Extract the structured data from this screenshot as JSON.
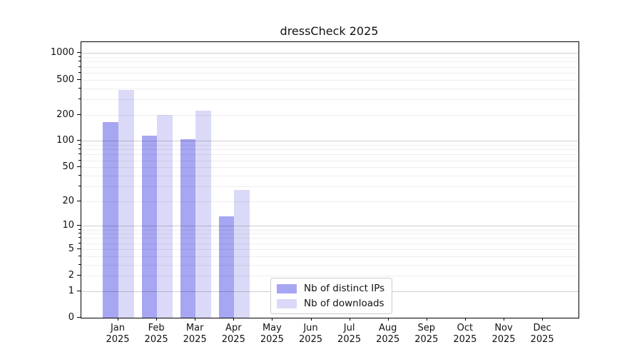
{
  "figure": {
    "background": "#ffffff",
    "text_color": "#111111"
  },
  "chart_data": {
    "type": "bar",
    "title": "dressCheck 2025",
    "categories": [
      "Jan",
      "Feb",
      "Mar",
      "Apr",
      "May",
      "Jun",
      "Jul",
      "Aug",
      "Sep",
      "Oct",
      "Nov",
      "Dec"
    ],
    "category_year": "2025",
    "series": [
      {
        "name": "Nb of distinct IPs",
        "color": "#a6a6f2",
        "values": [
          165,
          115,
          105,
          13,
          0,
          0,
          0,
          0,
          0,
          0,
          0,
          0
        ]
      },
      {
        "name": "Nb of downloads",
        "color": "#dadaf8",
        "values": [
          380,
          200,
          220,
          27,
          0,
          0,
          0,
          0,
          0,
          0,
          0,
          0
        ]
      }
    ],
    "xlabel": "",
    "ylabel": "",
    "y_axis": {
      "scale": "log1p",
      "labeled_ticks": [
        1000,
        500,
        200,
        100,
        50,
        20,
        10,
        5,
        2,
        1,
        0
      ],
      "major_grid_values": [
        1,
        10,
        100,
        1000
      ],
      "ylim": [
        0,
        1300
      ],
      "grid": true
    },
    "legend": {
      "position": "inside-lower-center",
      "entries": [
        "Nb of distinct IPs",
        "Nb of downloads"
      ]
    }
  }
}
